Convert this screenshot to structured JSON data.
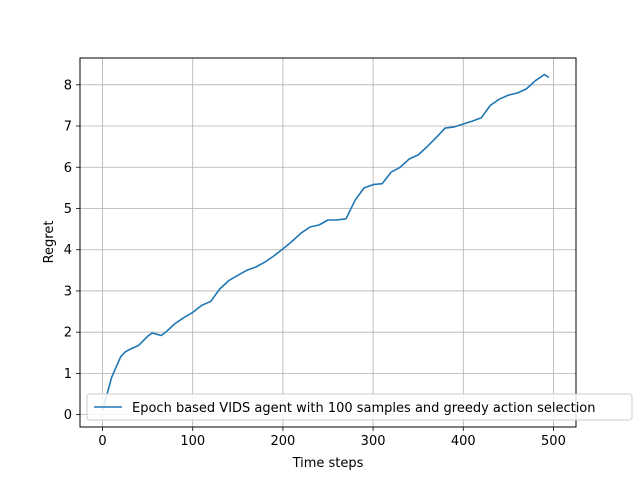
{
  "chart_data": {
    "type": "line",
    "title": "",
    "xlabel": "Time steps",
    "ylabel": "Regret",
    "xlim": [
      -25,
      525
    ],
    "ylim": [
      -0.3,
      8.65
    ],
    "xticks": [
      0,
      100,
      200,
      300,
      400,
      500
    ],
    "xtick_labels": [
      "0",
      "100",
      "200",
      "300",
      "400",
      "500"
    ],
    "yticks": [
      0,
      1,
      2,
      3,
      4,
      5,
      6,
      7,
      8
    ],
    "ytick_labels": [
      "0",
      "1",
      "2",
      "3",
      "4",
      "5",
      "6",
      "7",
      "8"
    ],
    "grid": true,
    "legend": {
      "position": "lower-left",
      "entries": [
        "Epoch based VIDS agent with 100 samples and greedy action selection"
      ]
    },
    "series": [
      {
        "name": "Epoch based VIDS agent with 100 samples and greedy action selection",
        "color": "#1f77b4",
        "x": [
          0,
          5,
          10,
          15,
          20,
          25,
          30,
          40,
          50,
          55,
          60,
          65,
          70,
          80,
          90,
          100,
          110,
          120,
          130,
          140,
          150,
          160,
          170,
          180,
          190,
          200,
          210,
          220,
          230,
          240,
          250,
          260,
          270,
          280,
          290,
          300,
          310,
          320,
          330,
          340,
          350,
          360,
          370,
          380,
          390,
          400,
          410,
          420,
          430,
          440,
          450,
          460,
          470,
          480,
          490,
          495
        ],
        "y": [
          0.1,
          0.5,
          0.9,
          1.15,
          1.4,
          1.52,
          1.58,
          1.68,
          1.9,
          1.98,
          1.95,
          1.92,
          2.0,
          2.2,
          2.35,
          2.48,
          2.65,
          2.75,
          3.05,
          3.25,
          3.38,
          3.5,
          3.58,
          3.7,
          3.85,
          4.02,
          4.2,
          4.4,
          4.55,
          4.6,
          4.72,
          4.72,
          4.75,
          5.2,
          5.5,
          5.58,
          5.6,
          5.88,
          6.0,
          6.2,
          6.3,
          6.5,
          6.72,
          6.95,
          6.98,
          7.05,
          7.12,
          7.2,
          7.5,
          7.65,
          7.75,
          7.8,
          7.9,
          8.1,
          8.25,
          8.18
        ]
      }
    ]
  }
}
